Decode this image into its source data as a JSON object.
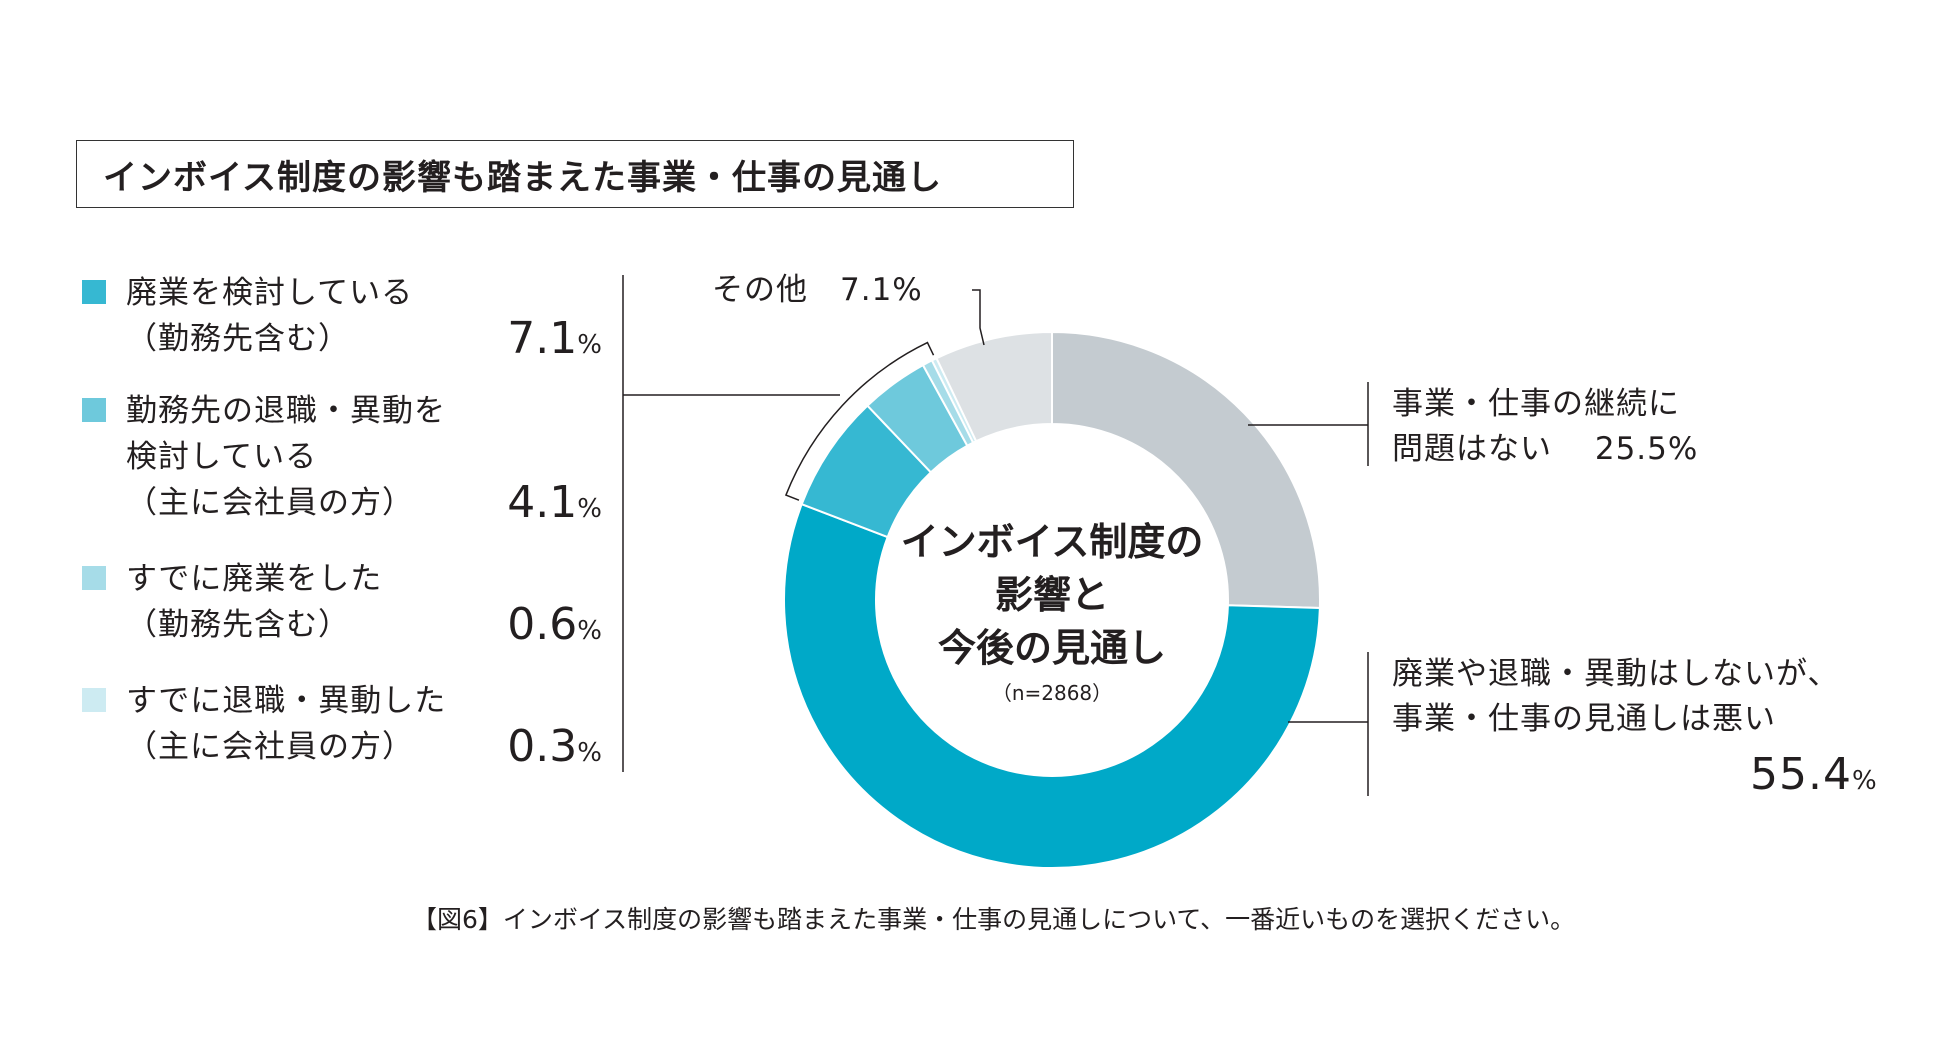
{
  "title": "インボイス制度の影響も踏まえた事業・仕事の見通し",
  "caption": "【図6】インボイス制度の影響も踏まえた事業・仕事の見通しについて、一番近いものを選択ください。",
  "colors": {
    "continue": "#c4cbd0",
    "outlook_bad": "#00a9c8",
    "considering_closure": "#36b8d2",
    "considering_leave": "#6ec9dc",
    "closed": "#a6dce8",
    "left": "#cdebf2",
    "other": "#dde1e4"
  },
  "legend": [
    {
      "line1": "廃業を検討している",
      "line2": "（勤務先含む）",
      "line3": "",
      "value": "7.1",
      "unit": "%"
    },
    {
      "line1": "勤務先の退職・異動を",
      "line2": "検討している",
      "line3": "（主に会社員の方）",
      "value": "4.1",
      "unit": "%"
    },
    {
      "line1": "すでに廃業をした",
      "line2": "（勤務先含む）",
      "line3": "",
      "value": "0.6",
      "unit": "%"
    },
    {
      "line1": "すでに退職・異動した",
      "line2": "（主に会社員の方）",
      "line3": "",
      "value": "0.3",
      "unit": "%"
    }
  ],
  "callouts": {
    "other": "その他　7.1%",
    "continue_line1": "事業・仕事の継続に",
    "continue_line2": "問題はない　 25.5%",
    "bad_line1": "廃業や退職・異動はしないが、",
    "bad_line2": "事業・仕事の見通しは悪い",
    "bad_value": "55.4",
    "bad_unit": "%"
  },
  "center": {
    "line1": "インボイス制度の",
    "line2": "影響と",
    "line3": "今後の見通し",
    "n": "（n=2868）"
  },
  "chart_data": {
    "type": "pie",
    "title": "インボイス制度の影響も踏まえた事業・仕事の見通し",
    "n": 2868,
    "slices": [
      {
        "label": "事業・仕事の継続に問題はない",
        "value": 25.5,
        "color_key": "continue"
      },
      {
        "label": "廃業や退職・異動はしないが、事業・仕事の見通しは悪い",
        "value": 55.4,
        "color_key": "outlook_bad"
      },
      {
        "label": "廃業を検討している（勤務先含む）",
        "value": 7.1,
        "color_key": "considering_closure"
      },
      {
        "label": "勤務先の退職・異動を検討している（主に会社員の方）",
        "value": 4.1,
        "color_key": "considering_leave"
      },
      {
        "label": "すでに廃業をした（勤務先含む）",
        "value": 0.6,
        "color_key": "closed"
      },
      {
        "label": "すでに退職・異動した（主に会社員の方）",
        "value": 0.3,
        "color_key": "left"
      },
      {
        "label": "その他",
        "value": 7.1,
        "color_key": "other"
      }
    ]
  }
}
